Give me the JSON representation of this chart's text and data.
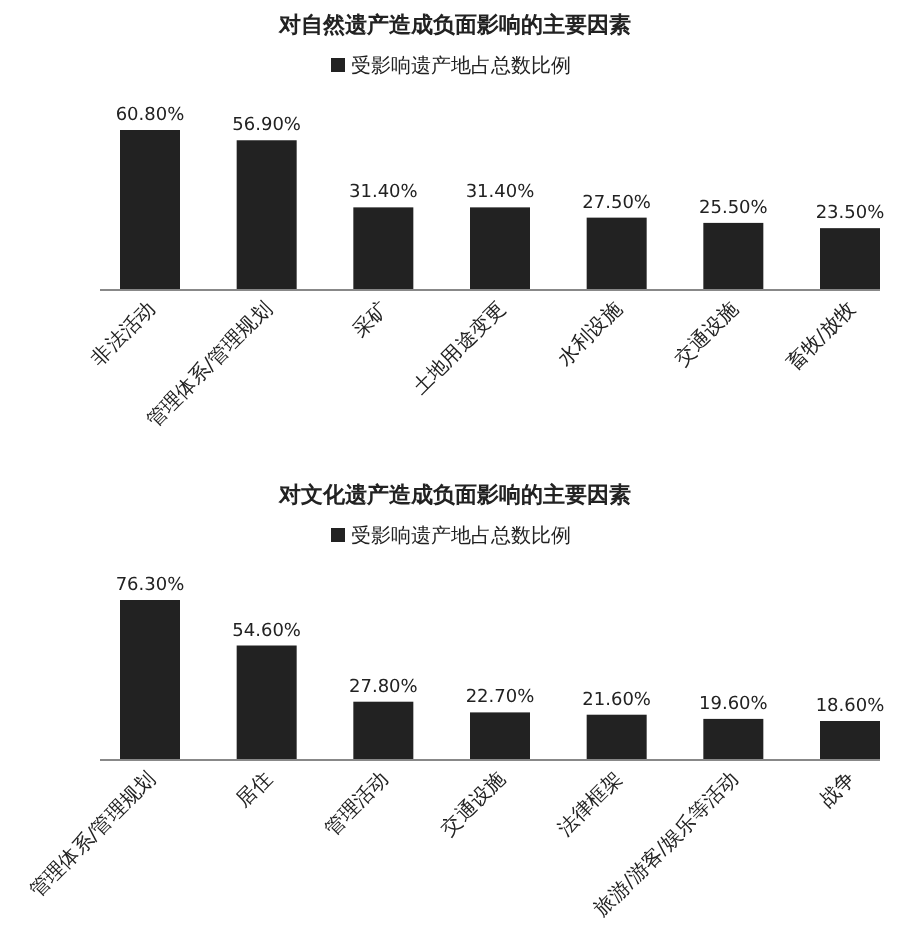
{
  "chart_data": [
    {
      "type": "bar",
      "title": "对自然遗产造成负面影响的主要因素",
      "categories": [
        "非法活动",
        "管理体系/管理规划",
        "采矿",
        "土地用途变更",
        "水利设施",
        "交通设施",
        "畜牧/放牧"
      ],
      "series": [
        {
          "name": "受影响遗产地占总数比例",
          "color": "#222222",
          "values": [
            60.8,
            56.9,
            31.4,
            31.4,
            27.5,
            25.5,
            23.5
          ],
          "value_labels": [
            "60.80%",
            "56.90%",
            "31.40%",
            "31.40%",
            "27.50%",
            "25.50%",
            "23.50%"
          ]
        }
      ],
      "legend": "top"
    },
    {
      "type": "bar",
      "title": "对文化遗产造成负面影响的主要因素",
      "categories": [
        "管理体系/管理规划",
        "居住",
        "管理活动",
        "交通设施",
        "法律框架",
        "旅游/游客/娱乐等活动",
        "战争"
      ],
      "series": [
        {
          "name": "受影响遗产地占总数比例",
          "color": "#222222",
          "values": [
            76.3,
            54.6,
            27.8,
            22.7,
            21.6,
            19.6,
            18.6
          ],
          "value_labels": [
            "76.30%",
            "54.60%",
            "27.80%",
            "22.70%",
            "21.60%",
            "19.60%",
            "18.60%"
          ]
        }
      ],
      "legend": "top"
    }
  ]
}
